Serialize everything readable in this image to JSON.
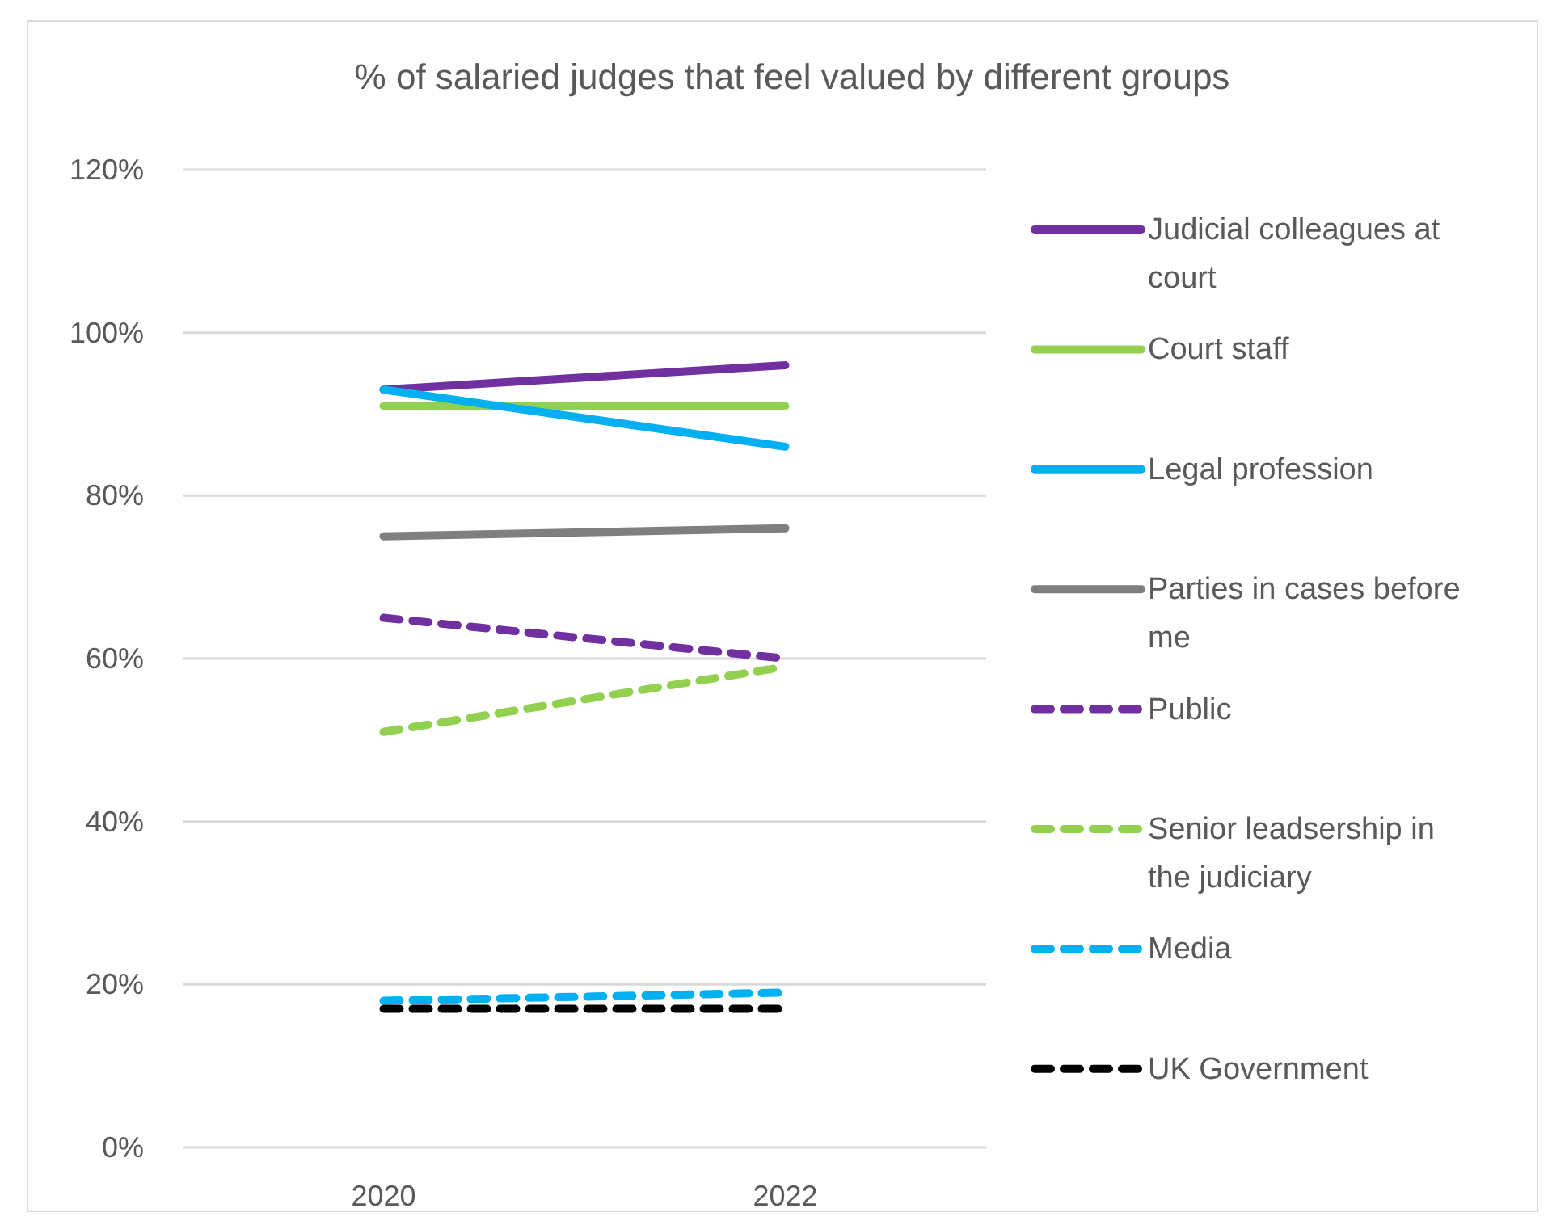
{
  "chart_data": {
    "type": "line",
    "title": "% of salaried judges that feel valued by different groups",
    "categories": [
      "2020",
      "2022"
    ],
    "ylim": [
      0,
      120
    ],
    "yticks": [
      {
        "value": 0,
        "label": "0%"
      },
      {
        "value": 20,
        "label": "20%"
      },
      {
        "value": 40,
        "label": "40%"
      },
      {
        "value": 60,
        "label": "60%"
      },
      {
        "value": 80,
        "label": "80%"
      },
      {
        "value": 100,
        "label": "100%"
      },
      {
        "value": 120,
        "label": "120%"
      }
    ],
    "grid": "y",
    "legend": "right",
    "marker": "none",
    "series": [
      {
        "name": "Judicial colleagues at court",
        "color": "#7030a0",
        "line_style": "solid",
        "values": [
          93,
          96
        ]
      },
      {
        "name": "Court staff",
        "color": "#92d050",
        "line_style": "solid",
        "values": [
          91,
          91
        ]
      },
      {
        "name": "Legal profession",
        "color": "#00b0f0",
        "line_style": "solid",
        "values": [
          93,
          86
        ]
      },
      {
        "name": "Parties in cases before me",
        "color": "#7f7f7f",
        "line_style": "solid",
        "values": [
          75,
          76
        ]
      },
      {
        "name": "Public",
        "color": "#7030a0",
        "line_style": "dashed",
        "values": [
          65,
          60
        ]
      },
      {
        "name": "Senior leadsership in the judiciary",
        "color": "#92d050",
        "line_style": "dashed",
        "values": [
          51,
          59
        ]
      },
      {
        "name": "Media",
        "color": "#00b0f0",
        "line_style": "dashed",
        "values": [
          18,
          19
        ]
      },
      {
        "name": "UK Government",
        "color": "#000000",
        "line_style": "dashed",
        "values": [
          17,
          17
        ]
      }
    ]
  }
}
